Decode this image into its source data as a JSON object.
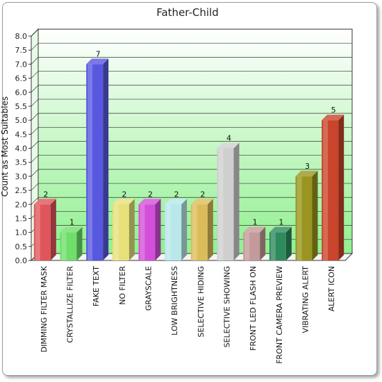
{
  "chart_data": {
    "type": "bar",
    "title": "Father-Child",
    "xlabel": "",
    "ylabel": "Count as Most Suitables",
    "ylim": [
      0,
      8
    ],
    "ytick_step": 0.5,
    "yticks": [
      "0.0",
      "0.5",
      "1.0",
      "1.5",
      "2.0",
      "2.5",
      "3.0",
      "3.5",
      "4.0",
      "4.5",
      "5.0",
      "5.5",
      "6.0",
      "6.5",
      "7.0",
      "7.5",
      "8.0"
    ],
    "grid": true,
    "legend": "none",
    "categories": [
      "DIMMING FILTER MASK",
      "CRYSTALLIZE FILTER",
      "FAKE TEXT",
      "NO FILTER",
      "GRAYSCALE",
      "LOW BRIGHTNESS",
      "SELECTIVE HIDING",
      "SELECTIVE SHOWING",
      "FRONT LED FLASH ON",
      "FRONT CAMERA PREVIEW",
      "VIBRATING ALERT",
      "ALERT ICON"
    ],
    "values": [
      2,
      1,
      7,
      2,
      2,
      2,
      2,
      4,
      1,
      1,
      3,
      5
    ],
    "colors": [
      "#e0555b",
      "#6fde6a",
      "#5757e0",
      "#e7e07a",
      "#d44fd9",
      "#b9e7ea",
      "#dcbc5a",
      "#cfcfcf",
      "#c59a9a",
      "#2f8a5d",
      "#9a9520",
      "#c9442a"
    ],
    "plot_background_top": "#ffffff",
    "plot_background_bottom": "#90f090"
  }
}
